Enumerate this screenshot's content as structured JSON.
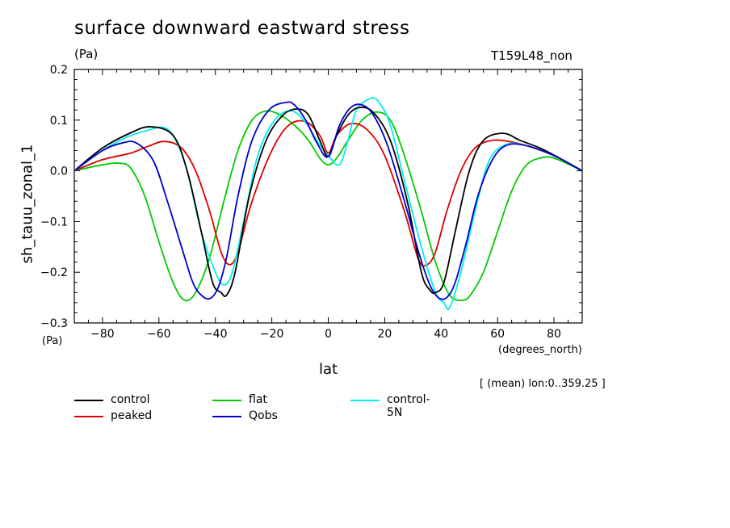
{
  "header": {
    "title": "surface downward eastward stress",
    "units_top": "(Pa)",
    "run_label": "T159L48_non",
    "units_bottom": "(Pa)",
    "mean_info": "[ (mean) lon:0..359.25 ]"
  },
  "chart_data": {
    "type": "line",
    "title": "surface downward eastward stress",
    "xlabel": "lat",
    "x_units": "(degrees_north)",
    "ylabel": "sh_tauu_zonal_1",
    "y_units": "(Pa)",
    "xlim": [
      -90,
      90
    ],
    "ylim": [
      -0.3,
      0.2
    ],
    "x_ticks": [
      -80,
      -60,
      -40,
      -20,
      0,
      20,
      40,
      60,
      80
    ],
    "x_tick_labels": [
      "−80",
      "−60",
      "−40",
      "−20",
      "0",
      "20",
      "40",
      "60",
      "80"
    ],
    "y_ticks": [
      -0.3,
      -0.2,
      -0.1,
      0.0,
      0.1,
      0.2
    ],
    "y_tick_labels": [
      "−0.3",
      "−0.2",
      "−0.1",
      "0.0",
      "0.1",
      "0.2"
    ],
    "series": [
      {
        "name": "control",
        "color": "#000000",
        "x": [
          -90,
          -80,
          -70,
          -63,
          -55,
          -50,
          -45,
          -41,
          -38,
          -36,
          -33,
          -28,
          -22,
          -16,
          -11,
          -7,
          -3,
          0,
          3,
          7,
          11,
          16,
          22,
          28,
          33,
          36,
          38,
          41,
          45,
          50,
          55,
          62,
          68,
          75,
          82,
          90
        ],
        "y": [
          0.0,
          0.045,
          0.075,
          0.087,
          0.07,
          0.0,
          -0.12,
          -0.22,
          -0.24,
          -0.245,
          -0.2,
          -0.05,
          0.06,
          0.11,
          0.122,
          0.11,
          0.06,
          0.028,
          0.07,
          0.11,
          0.125,
          0.115,
          0.06,
          -0.06,
          -0.2,
          -0.235,
          -0.24,
          -0.22,
          -0.12,
          0.0,
          0.06,
          0.074,
          0.06,
          0.045,
          0.025,
          0.0
        ]
      },
      {
        "name": "peaked",
        "color": "#dd0000",
        "x": [
          -90,
          -80,
          -70,
          -64,
          -58,
          -52,
          -47,
          -42,
          -38,
          -35,
          -32,
          -27,
          -20,
          -14,
          -8,
          -3,
          0,
          3,
          8,
          14,
          20,
          27,
          32,
          35,
          38,
          42,
          47,
          52,
          58,
          64,
          70,
          80,
          90
        ],
        "y": [
          0.0,
          0.022,
          0.035,
          0.048,
          0.058,
          0.045,
          0.0,
          -0.08,
          -0.16,
          -0.185,
          -0.16,
          -0.06,
          0.04,
          0.09,
          0.097,
          0.07,
          0.035,
          0.07,
          0.093,
          0.08,
          0.03,
          -0.08,
          -0.175,
          -0.185,
          -0.16,
          -0.08,
          0.0,
          0.045,
          0.06,
          0.058,
          0.05,
          0.03,
          0.0
        ]
      },
      {
        "name": "flat",
        "color": "#00cc00",
        "x": [
          -90,
          -80,
          -74,
          -70,
          -65,
          -60,
          -55,
          -51,
          -47,
          -42,
          -37,
          -32,
          -27,
          -22,
          -17,
          -12,
          -7,
          -3,
          0,
          3,
          7,
          12,
          17,
          22,
          27,
          33,
          38,
          43,
          48,
          51,
          55,
          60,
          65,
          70,
          75,
          80,
          90
        ],
        "y": [
          0.0,
          0.012,
          0.015,
          0.005,
          -0.05,
          -0.14,
          -0.22,
          -0.255,
          -0.24,
          -0.17,
          -0.06,
          0.04,
          0.1,
          0.118,
          0.11,
          0.09,
          0.06,
          0.025,
          0.012,
          0.025,
          0.06,
          0.1,
          0.116,
          0.1,
          0.03,
          -0.08,
          -0.18,
          -0.245,
          -0.255,
          -0.24,
          -0.2,
          -0.12,
          -0.04,
          0.01,
          0.025,
          0.025,
          0.0
        ]
      },
      {
        "name": "control-5N",
        "color": "#00eeee",
        "x": [
          -90,
          -80,
          -72,
          -64,
          -58,
          -54,
          -50,
          -45,
          -40,
          -37,
          -34,
          -30,
          -25,
          -19,
          -13,
          -8,
          -4,
          0,
          4,
          7,
          10,
          15,
          18,
          22,
          27,
          33,
          38,
          41,
          43,
          47,
          52,
          57,
          63,
          70,
          80,
          90
        ],
        "y": [
          0.0,
          0.04,
          0.065,
          0.08,
          0.085,
          0.06,
          0.0,
          -0.12,
          -0.2,
          -0.225,
          -0.2,
          -0.1,
          0.03,
          0.1,
          0.118,
          0.095,
          0.06,
          0.03,
          0.012,
          0.06,
          0.12,
          0.143,
          0.135,
          0.09,
          -0.02,
          -0.15,
          -0.24,
          -0.26,
          -0.27,
          -0.2,
          -0.08,
          0.02,
          0.052,
          0.05,
          0.03,
          0.0
        ]
      },
      {
        "name": "Qobs",
        "color": "#0000cc",
        "x": [
          -90,
          -80,
          -73,
          -68,
          -62,
          -57,
          -52,
          -48,
          -45,
          -42,
          -39,
          -36,
          -32,
          -27,
          -21,
          -15,
          -12,
          -8,
          -4,
          0,
          4,
          8,
          12,
          16,
          21,
          27,
          32,
          36,
          39,
          42,
          45,
          49,
          53,
          58,
          63,
          70,
          80,
          90
        ],
        "y": [
          0.0,
          0.04,
          0.055,
          0.055,
          0.02,
          -0.06,
          -0.15,
          -0.22,
          -0.245,
          -0.252,
          -0.23,
          -0.17,
          -0.05,
          0.06,
          0.12,
          0.135,
          0.13,
          0.1,
          0.055,
          0.028,
          0.09,
          0.125,
          0.13,
          0.11,
          0.05,
          -0.06,
          -0.16,
          -0.225,
          -0.25,
          -0.25,
          -0.22,
          -0.14,
          -0.05,
          0.02,
          0.05,
          0.05,
          0.03,
          0.0
        ]
      }
    ]
  }
}
